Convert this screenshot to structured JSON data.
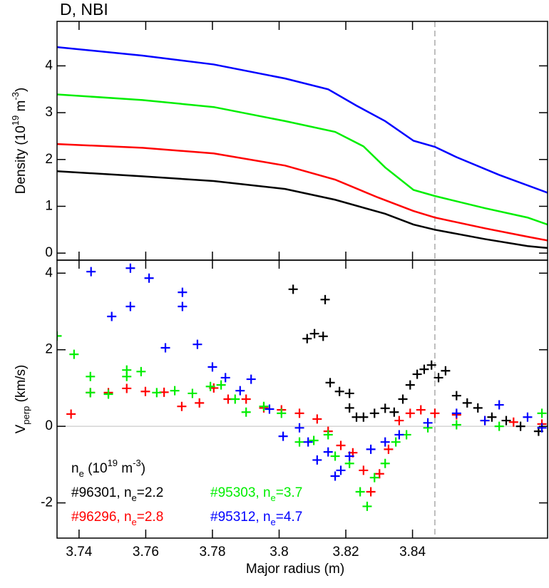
{
  "chart_data": [
    {
      "type": "line",
      "title": "D, NBI",
      "ylabel": [
        {
          "text": "Density (10"
        },
        {
          "text": "19",
          "sup": true
        },
        {
          "text": " m"
        },
        {
          "text": "-3",
          "sup": true
        },
        {
          "text": ")"
        }
      ],
      "xlim": [
        3.7334,
        3.8805
      ],
      "xticks": [
        3.74,
        3.76,
        3.78,
        3.8,
        3.82,
        3.84
      ],
      "xtick_labels": false,
      "ylim": [
        -0.15,
        4.95
      ],
      "yticks": [
        0,
        1,
        2,
        3,
        4
      ],
      "vline": {
        "value": 3.8467,
        "color": "#aaaaaa",
        "dashed": true
      },
      "series": [
        {
          "color": "#000000",
          "x": [
            3.7334,
            3.759,
            3.7804,
            3.8018,
            3.8168,
            3.8318,
            3.8403,
            3.8467,
            3.8617,
            3.8745,
            3.8805
          ],
          "values": [
            1.75,
            1.64,
            1.54,
            1.37,
            1.14,
            0.84,
            0.61,
            0.5,
            0.3,
            0.15,
            0.11
          ]
        },
        {
          "color": "#ff0000",
          "x": [
            3.7334,
            3.759,
            3.7804,
            3.8018,
            3.8168,
            3.8296,
            3.8403,
            3.8467,
            3.8617,
            3.8745,
            3.8805
          ],
          "values": [
            2.33,
            2.25,
            2.13,
            1.87,
            1.57,
            1.19,
            0.9,
            0.76,
            0.53,
            0.35,
            0.27
          ]
        },
        {
          "color": "#00ee00",
          "x": [
            3.7334,
            3.759,
            3.7804,
            3.8018,
            3.8168,
            3.8253,
            3.8318,
            3.8403,
            3.8467,
            3.8617,
            3.8745,
            3.8805
          ],
          "values": [
            3.39,
            3.27,
            3.12,
            2.82,
            2.59,
            2.28,
            1.83,
            1.35,
            1.22,
            0.96,
            0.76,
            0.61
          ]
        },
        {
          "color": "#0000ff",
          "x": [
            3.7334,
            3.759,
            3.7804,
            3.8018,
            3.8147,
            3.8232,
            3.8318,
            3.8403,
            3.8467,
            3.8532,
            3.866,
            3.8805
          ],
          "values": [
            4.4,
            4.22,
            4.03,
            3.73,
            3.5,
            3.15,
            2.82,
            2.4,
            2.27,
            2.05,
            1.67,
            1.29
          ]
        }
      ]
    },
    {
      "type": "scatter",
      "xlabel": "Major radius (m)",
      "ylabel": [
        {
          "text": "V"
        },
        {
          "text": "perp",
          "sub": true
        },
        {
          "text": " (km/s)"
        }
      ],
      "xlim": [
        3.7334,
        3.8805
      ],
      "xticks": [
        3.74,
        3.76,
        3.78,
        3.8,
        3.82,
        3.84
      ],
      "xtick_labels": true,
      "ylim": [
        -2.92,
        4.34
      ],
      "yticks": [
        -2,
        0,
        2,
        4
      ],
      "vline": {
        "value": 3.8467,
        "color": "#aaaaaa",
        "dashed": true
      },
      "hline": {
        "value": 0,
        "color": "#cccccc"
      },
      "legend_title": [
        {
          "text": "n"
        },
        {
          "text": "e",
          "sub": true
        },
        {
          "text": " (10"
        },
        {
          "text": "19",
          "sup": true
        },
        {
          "text": " m"
        },
        {
          "text": "-3",
          "sup": true
        },
        {
          "text": ")"
        }
      ],
      "series": [
        {
          "name": [
            {
              "text": "#96301, n"
            },
            {
              "text": "e",
              "sub": true
            },
            {
              "text": "=2.2"
            }
          ],
          "color": "#000000",
          "x": [
            3.8042,
            3.8084,
            3.8106,
            3.8132,
            3.8138,
            3.8153,
            3.8181,
            3.8211,
            3.8211,
            3.8232,
            3.8253,
            3.8286,
            3.8318,
            3.8345,
            3.8371,
            3.8393,
            3.8414,
            3.8435,
            3.8457,
            3.8478,
            3.8499,
            3.8532,
            3.8564,
            3.8596,
            3.8638,
            3.8681,
            3.8724,
            3.8778
          ],
          "values": [
            3.58,
            2.29,
            2.42,
            2.35,
            3.31,
            1.14,
            0.91,
            0.86,
            0.48,
            0.24,
            0.24,
            0.34,
            0.47,
            0.37,
            0.71,
            1.08,
            1.36,
            1.49,
            1.6,
            1.27,
            1.45,
            0.8,
            0.61,
            0.48,
            0.24,
            0.15,
            0.0,
            -0.13
          ]
        },
        {
          "name": [
            {
              "text": "#96296, n"
            },
            {
              "text": "e",
              "sub": true
            },
            {
              "text": "=2.8"
            }
          ],
          "color": "#ff0000",
          "x": [
            3.7376,
            3.7434,
            3.7488,
            3.7543,
            3.7599,
            3.7655,
            3.7708,
            3.7761,
            3.7804,
            3.7847,
            3.7901,
            3.7954,
            3.8007,
            3.8061,
            3.8114,
            3.8147,
            3.8185,
            3.8221,
            3.8253,
            3.8275,
            3.8301,
            3.8328,
            3.836,
            3.8393,
            3.8425,
            3.8467,
            3.8532,
            3.8617,
            3.8703,
            3.8788
          ],
          "values": [
            0.32,
            0.88,
            0.88,
            0.99,
            0.91,
            0.89,
            0.52,
            0.61,
            1.0,
            0.71,
            0.71,
            0.48,
            0.43,
            0.34,
            0.19,
            -0.13,
            -0.5,
            -0.69,
            -1.15,
            -1.71,
            -1.24,
            -0.6,
            0.15,
            0.34,
            0.43,
            0.34,
            0.3,
            0.15,
            0.11,
            0.06
          ]
        },
        {
          "name": [
            {
              "text": "#95303, n"
            },
            {
              "text": "e",
              "sub": true
            },
            {
              "text": "=3.7"
            }
          ],
          "color": "#00ee00",
          "x": [
            3.7334,
            3.7385,
            3.7434,
            3.7434,
            3.7488,
            3.7543,
            3.7543,
            3.7586,
            3.7633,
            3.7687,
            3.774,
            3.7794,
            3.7826,
            3.7868,
            3.7901,
            3.7954,
            3.8007,
            3.8061,
            3.8104,
            3.8147,
            3.8168,
            3.8211,
            3.8243,
            3.8264,
            3.8286,
            3.8318,
            3.835,
            3.8382,
            3.8446,
            3.8532,
            3.866,
            3.8788
          ],
          "values": [
            2.36,
            1.88,
            1.3,
            0.88,
            0.84,
            1.47,
            1.3,
            1.43,
            0.88,
            0.93,
            0.86,
            1.04,
            1.08,
            0.71,
            0.37,
            0.52,
            0.34,
            -0.41,
            -0.37,
            -0.22,
            -0.78,
            -0.97,
            -1.71,
            -2.09,
            -1.34,
            -0.97,
            -0.41,
            -0.22,
            -0.04,
            0.04,
            0,
            0.34
          ]
        },
        {
          "name": [
            {
              "text": "#95312, n"
            },
            {
              "text": "e",
              "sub": true
            },
            {
              "text": "=4.7"
            }
          ],
          "color": "#0000ff",
          "x": [
            3.7436,
            3.7498,
            3.7554,
            3.7554,
            3.761,
            3.771,
            3.771,
            3.7659,
            3.7755,
            3.78,
            3.7839,
            3.7883,
            3.7916,
            3.7971,
            3.8012,
            3.8061,
            3.8087,
            3.8114,
            3.8147,
            3.8168,
            3.8185,
            3.8211,
            3.8275,
            3.8318,
            3.836,
            3.8446,
            3.8532,
            3.8617,
            3.866,
            3.8745,
            3.8788
          ],
          "values": [
            4.04,
            2.87,
            3.13,
            4.13,
            3.87,
            3.5,
            3.13,
            2.05,
            2.14,
            1.55,
            1.27,
            0.93,
            1.23,
            0.45,
            -0.26,
            -0.04,
            -0.41,
            -0.88,
            -0.67,
            -1.3,
            -1.15,
            -0.78,
            -0.6,
            -0.41,
            -0.22,
            0.09,
            0.34,
            0.15,
            0.56,
            0.24,
            -0.04
          ]
        }
      ]
    }
  ]
}
